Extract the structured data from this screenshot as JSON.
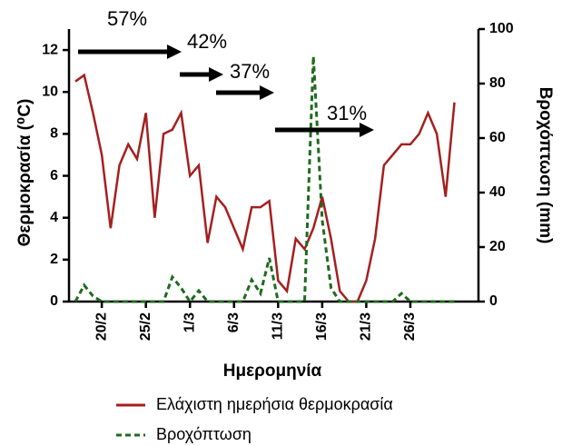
{
  "chart_data": {
    "type": "line",
    "xlabel": "Ημερομηνία",
    "ylabel": "Θερμοκρασία (⁰C)",
    "y2label": "Βροχόπτωση (mm)",
    "categories": [
      null,
      null,
      null,
      "20/2",
      null,
      null,
      null,
      null,
      "25/2",
      null,
      null,
      null,
      null,
      "1/3",
      null,
      null,
      null,
      null,
      "6/3",
      null,
      null,
      null,
      null,
      "11/3",
      null,
      null,
      null,
      null,
      "16/3",
      null,
      null,
      null,
      null,
      "21/3",
      null,
      null,
      null,
      null,
      "26/3",
      null,
      null,
      null,
      null,
      null
    ],
    "series": [
      {
        "name": "Ελάχιστη ημερήσια θερμοκρασία",
        "color": "#a51f1f",
        "style": "solid",
        "values": [
          10.5,
          10.8,
          9,
          7,
          3.5,
          6.5,
          7.5,
          6.8,
          9,
          4,
          8,
          8.2,
          9,
          6,
          6.5,
          2.8,
          5,
          4.5,
          3.5,
          2.5,
          4.5,
          4.5,
          4.8,
          1,
          0.5,
          3,
          2.5,
          3.5,
          5,
          3,
          0.5,
          0,
          0,
          1,
          3,
          6.5,
          7,
          7.5,
          7.5,
          8,
          9,
          8,
          5,
          9.5
        ]
      },
      {
        "name": "Βροχόπτωση",
        "color": "#1e6b1e",
        "style": "dashed",
        "axis": "y2",
        "values": [
          0,
          6,
          2,
          0,
          0,
          0,
          0,
          0,
          0,
          0,
          0,
          9,
          5,
          0,
          4,
          0,
          0,
          0,
          0,
          0,
          8,
          3,
          16,
          0,
          0,
          0,
          0,
          90,
          30,
          5,
          0,
          0,
          0,
          0,
          0,
          0,
          0,
          3,
          0,
          0,
          0,
          0,
          0,
          0
        ]
      }
    ],
    "ylim": [
      0,
      13
    ],
    "yticks": [
      0,
      2,
      4,
      6,
      8,
      10,
      12
    ],
    "y2lim": [
      0,
      100
    ],
    "y2ticks": [
      0,
      20,
      40,
      60,
      80,
      100
    ],
    "annotations": [
      "57%",
      "42%",
      "37%",
      "31%"
    ]
  }
}
